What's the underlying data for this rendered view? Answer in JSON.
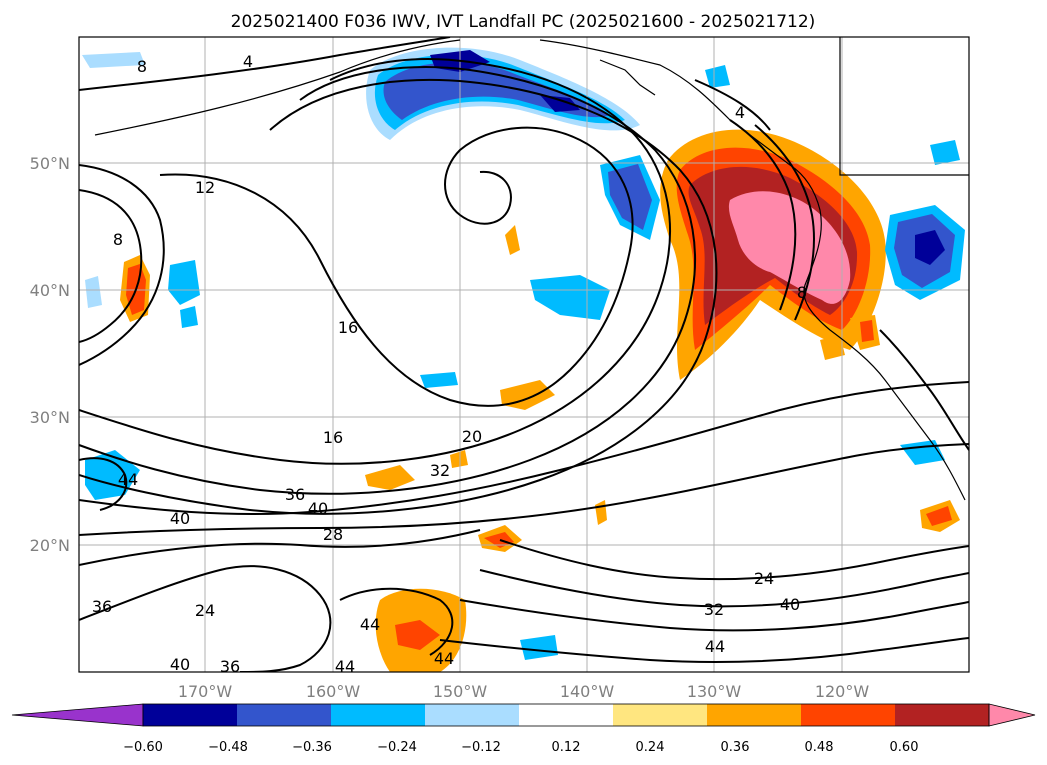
{
  "map": {
    "title": "2025021400 F036 IWV, IVT Landfall PC (2025021600 - 2025021712)",
    "lat_labels": [
      "50°N",
      "40°N",
      "30°N",
      "20°N"
    ],
    "lon_labels": [
      "170°W",
      "160°W",
      "150°W",
      "140°W",
      "130°W",
      "120°W"
    ],
    "contour_labels": [
      "4",
      "8",
      "8",
      "12",
      "16",
      "16",
      "20",
      "24",
      "24",
      "28",
      "32",
      "32",
      "36",
      "36",
      "36",
      "40",
      "40",
      "40",
      "40",
      "44",
      "44",
      "44",
      "44",
      "44",
      "4",
      "8"
    ]
  },
  "colorbar": {
    "ticks": [
      "−0.60",
      "−0.48",
      "−0.36",
      "−0.24",
      "−0.12",
      "0.12",
      "0.24",
      "0.36",
      "0.48",
      "0.60"
    ],
    "colors": [
      "#9933cc",
      "#000099",
      "#3355cc",
      "#00bbff",
      "#aaddff",
      "#ffffff",
      "#ffe680",
      "#ffa500",
      "#ff4400",
      "#b22222",
      "#ff88aa"
    ]
  }
}
